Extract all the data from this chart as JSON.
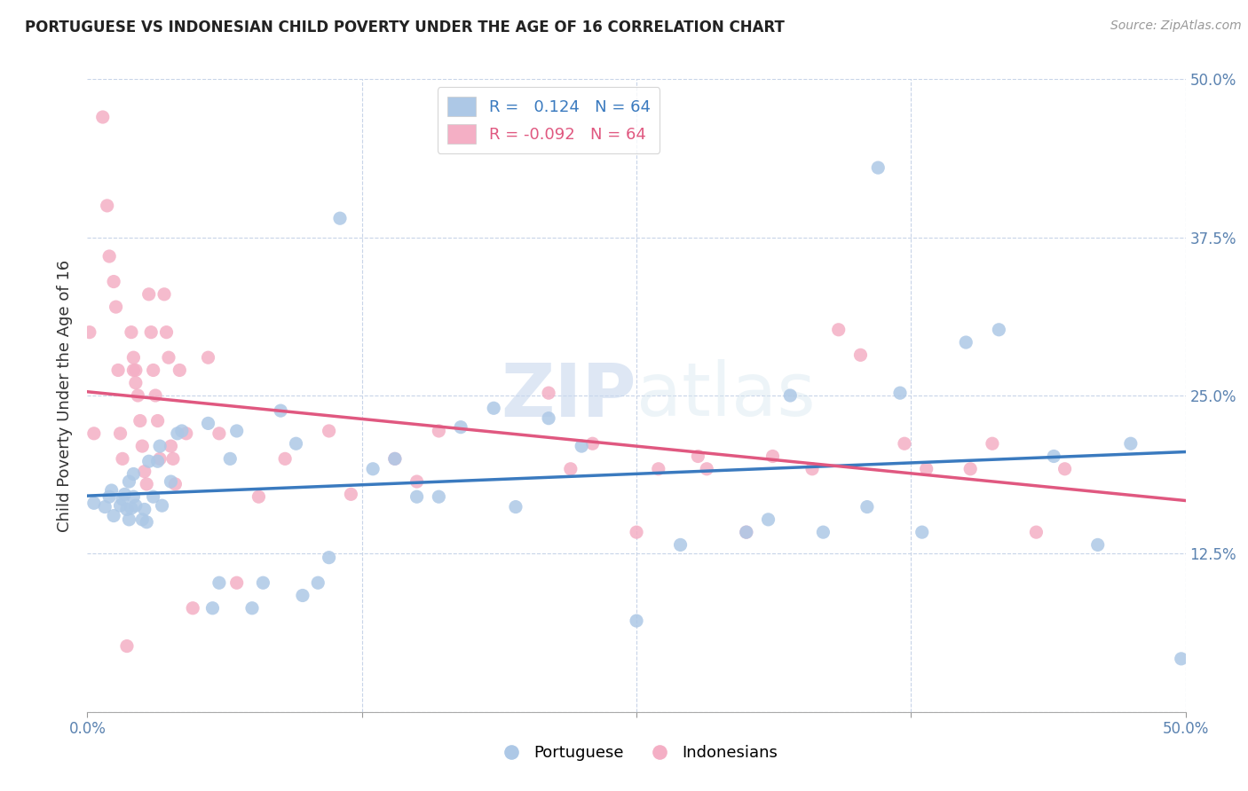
{
  "title": "PORTUGUESE VS INDONESIAN CHILD POVERTY UNDER THE AGE OF 16 CORRELATION CHART",
  "source": "Source: ZipAtlas.com",
  "ylabel": "Child Poverty Under the Age of 16",
  "xlim": [
    0.0,
    0.5
  ],
  "ylim": [
    0.0,
    0.5
  ],
  "xticks": [
    0.0,
    0.125,
    0.25,
    0.375,
    0.5
  ],
  "yticks": [
    0.0,
    0.125,
    0.25,
    0.375,
    0.5
  ],
  "r_portuguese": 0.124,
  "n_portuguese": 64,
  "r_indonesian": -0.092,
  "n_indonesian": 64,
  "blue_color": "#adc8e6",
  "pink_color": "#f4afc5",
  "blue_line_color": "#3a7abf",
  "pink_line_color": "#e05880",
  "background_color": "#ffffff",
  "grid_color": "#c8d4e8",
  "watermark_zip": "ZIP",
  "watermark_atlas": "atlas",
  "portuguese_x": [
    0.003,
    0.008,
    0.01,
    0.011,
    0.012,
    0.015,
    0.016,
    0.017,
    0.018,
    0.019,
    0.019,
    0.02,
    0.021,
    0.021,
    0.022,
    0.025,
    0.026,
    0.027,
    0.028,
    0.03,
    0.032,
    0.033,
    0.034,
    0.038,
    0.041,
    0.043,
    0.055,
    0.057,
    0.06,
    0.065,
    0.068,
    0.075,
    0.08,
    0.088,
    0.095,
    0.098,
    0.105,
    0.11,
    0.115,
    0.13,
    0.14,
    0.15,
    0.16,
    0.17,
    0.185,
    0.195,
    0.21,
    0.225,
    0.25,
    0.27,
    0.3,
    0.31,
    0.32,
    0.335,
    0.355,
    0.36,
    0.37,
    0.38,
    0.4,
    0.415,
    0.44,
    0.46,
    0.475,
    0.498
  ],
  "portuguese_y": [
    0.165,
    0.162,
    0.17,
    0.175,
    0.155,
    0.163,
    0.168,
    0.172,
    0.16,
    0.152,
    0.182,
    0.161,
    0.17,
    0.188,
    0.163,
    0.152,
    0.16,
    0.15,
    0.198,
    0.17,
    0.198,
    0.21,
    0.163,
    0.182,
    0.22,
    0.222,
    0.228,
    0.082,
    0.102,
    0.2,
    0.222,
    0.082,
    0.102,
    0.238,
    0.212,
    0.092,
    0.102,
    0.122,
    0.39,
    0.192,
    0.2,
    0.17,
    0.17,
    0.225,
    0.24,
    0.162,
    0.232,
    0.21,
    0.072,
    0.132,
    0.142,
    0.152,
    0.25,
    0.142,
    0.162,
    0.43,
    0.252,
    0.142,
    0.292,
    0.302,
    0.202,
    0.132,
    0.212,
    0.042
  ],
  "indonesian_x": [
    0.001,
    0.003,
    0.007,
    0.009,
    0.01,
    0.012,
    0.013,
    0.014,
    0.015,
    0.016,
    0.018,
    0.02,
    0.021,
    0.021,
    0.022,
    0.022,
    0.023,
    0.024,
    0.025,
    0.026,
    0.027,
    0.028,
    0.029,
    0.03,
    0.031,
    0.032,
    0.033,
    0.035,
    0.036,
    0.037,
    0.038,
    0.039,
    0.04,
    0.042,
    0.045,
    0.048,
    0.055,
    0.06,
    0.068,
    0.078,
    0.09,
    0.11,
    0.12,
    0.14,
    0.15,
    0.16,
    0.21,
    0.22,
    0.23,
    0.25,
    0.26,
    0.278,
    0.282,
    0.3,
    0.312,
    0.33,
    0.342,
    0.352,
    0.372,
    0.382,
    0.402,
    0.412,
    0.432,
    0.445
  ],
  "indonesian_y": [
    0.3,
    0.22,
    0.47,
    0.4,
    0.36,
    0.34,
    0.32,
    0.27,
    0.22,
    0.2,
    0.052,
    0.3,
    0.28,
    0.27,
    0.27,
    0.26,
    0.25,
    0.23,
    0.21,
    0.19,
    0.18,
    0.33,
    0.3,
    0.27,
    0.25,
    0.23,
    0.2,
    0.33,
    0.3,
    0.28,
    0.21,
    0.2,
    0.18,
    0.27,
    0.22,
    0.082,
    0.28,
    0.22,
    0.102,
    0.17,
    0.2,
    0.222,
    0.172,
    0.2,
    0.182,
    0.222,
    0.252,
    0.192,
    0.212,
    0.142,
    0.192,
    0.202,
    0.192,
    0.142,
    0.202,
    0.192,
    0.302,
    0.282,
    0.212,
    0.192,
    0.192,
    0.212,
    0.142,
    0.192
  ]
}
